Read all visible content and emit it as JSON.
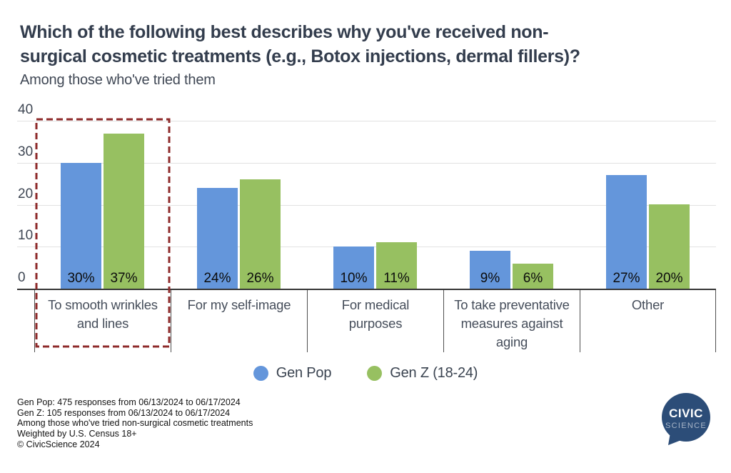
{
  "header": {
    "title": "Which of the following best describes why you've received non-surgical cosmetic treatments (e.g., Botox injections, dermal fillers)?",
    "title_lines": [
      "Which of the following best describes why you've received non-",
      "surgical cosmetic treatments (e.g., Botox injections, dermal fillers)?"
    ],
    "subtitle": "Among those who've tried them"
  },
  "chart_data": {
    "type": "bar",
    "categories": [
      "To smooth wrinkles and lines",
      "For my self-image",
      "For medical purposes",
      "To take preventative measures against aging",
      "Other"
    ],
    "category_line_breaks": [
      [
        "To smooth wrinkles",
        "and lines"
      ],
      [
        "For my self-image"
      ],
      [
        "For medical",
        "purposes"
      ],
      [
        "To take preventative",
        "measures against",
        "aging"
      ],
      [
        "Other"
      ]
    ],
    "series": [
      {
        "name": "Gen Pop",
        "color": "#6496DB",
        "values": [
          30,
          24,
          10,
          9,
          27
        ]
      },
      {
        "name": "Gen Z (18-24)",
        "color": "#97C061",
        "values": [
          37,
          26,
          11,
          6,
          20
        ]
      }
    ],
    "value_label_format": "{v}%",
    "ylim": [
      0,
      40
    ],
    "yticks": [
      0,
      10,
      20,
      30,
      40
    ],
    "grid": true,
    "legend_position": "bottom",
    "highlight": {
      "category_index": 0,
      "shape": "dashed-rectangle",
      "color": "#8E2A2A"
    }
  },
  "footer": {
    "lines": [
      "Gen Pop: 475 responses from 06/13/2024 to 06/17/2024",
      "Gen Z: 105 responses from 06/13/2024 to 06/17/2024",
      "Among those who've tried non-surgical cosmetic treatments",
      "Weighted by U.S. Census 18+",
      "© CivicScience 2024"
    ]
  },
  "logo": {
    "line1": "CIVIC",
    "line2": "SCIENCE",
    "bubble_color": "#2C4D78"
  }
}
